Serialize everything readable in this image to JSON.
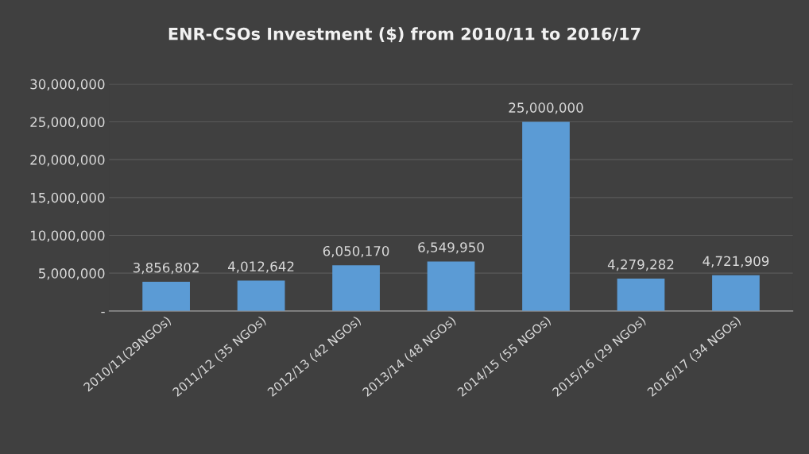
{
  "chart_data": {
    "type": "bar",
    "title": "ENR-CSOs Investment ($) from 2010/11 to 2016/17",
    "categories": [
      "2010/11(29NGOs)",
      "2011/12 (35 NGOs)",
      "2012/13 (42 NGOs)",
      "2013/14 (48 NGOs)",
      "2014/15 (55 NGOs)",
      "2015/16 (29 NGOs)",
      "2016/17 (34 NGOs)"
    ],
    "values": [
      3856802,
      4012642,
      6050170,
      6549950,
      25000000,
      4279282,
      4721909
    ],
    "color": "#5b9bd5",
    "value_labels": [
      "3,856,802",
      "4,012,642",
      "6,050,170",
      "6,549,950",
      "25,000,000",
      "4,279,282",
      "4,721,909"
    ],
    "ylim": [
      0,
      30000000
    ],
    "yticks": [
      {
        "value": 0,
        "label": "-"
      },
      {
        "value": 5000000,
        "label": "5,000,000"
      },
      {
        "value": 10000000,
        "label": "10,000,000"
      },
      {
        "value": 15000000,
        "label": "15,000,000"
      },
      {
        "value": 20000000,
        "label": "20,000,000"
      },
      {
        "value": 25000000,
        "label": "25,000,000"
      },
      {
        "value": 30000000,
        "label": "30,000,000"
      }
    ],
    "grid": "y"
  }
}
